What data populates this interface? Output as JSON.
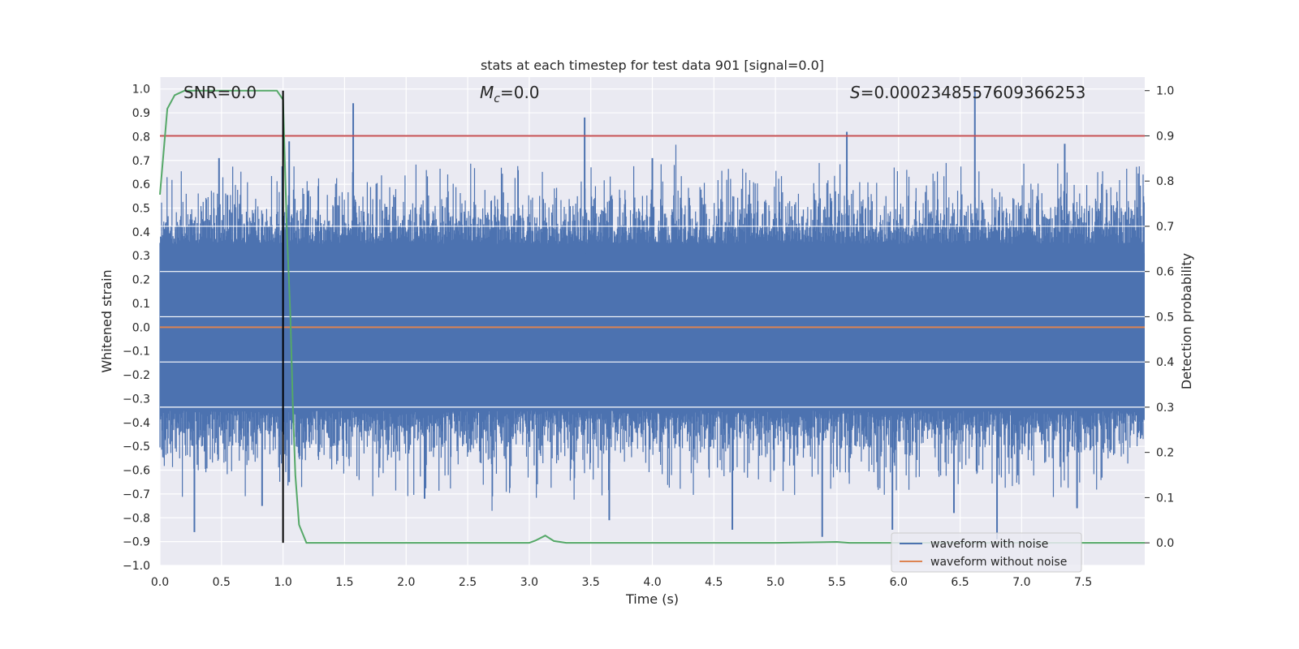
{
  "chart_data": {
    "type": "line",
    "title": "stats at each timestep for test data 901 [signal=0.0]",
    "xlabel": "Time (s)",
    "ylabel_left": "Whitened strain",
    "ylabel_right": "Detection probability",
    "xlim": [
      0.0,
      8.0
    ],
    "ylim_left": [
      -1.0,
      1.05
    ],
    "ylim_right": [
      -0.05,
      1.03
    ],
    "xticks": [
      "0.0",
      "0.5",
      "1.0",
      "1.5",
      "2.0",
      "2.5",
      "3.0",
      "3.5",
      "4.0",
      "4.5",
      "5.0",
      "5.5",
      "6.0",
      "6.5",
      "7.0",
      "7.5"
    ],
    "yticks_left": [
      "1.0",
      "0.9",
      "0.8",
      "0.7",
      "0.6",
      "0.5",
      "0.4",
      "0.3",
      "0.2",
      "0.1",
      "0.0",
      "-0.1",
      "-0.2",
      "-0.3",
      "-0.4",
      "-0.5",
      "-0.6",
      "-0.7",
      "-0.8",
      "-0.9",
      "-1.0"
    ],
    "yticks_right": [
      "1.0",
      "0.9",
      "0.8",
      "0.7",
      "0.6",
      "0.5",
      "0.4",
      "0.3",
      "0.2",
      "0.1",
      "0.0"
    ],
    "annotations": {
      "snr": "SNR=0.0",
      "mc_symbol": "M",
      "mc_sub": "c",
      "mc_value": "=0.0",
      "s_symbol": "S",
      "s_value": "=0.0002348557609366253"
    },
    "threshold": {
      "probability": 0.9,
      "color": "#c44e52"
    },
    "marker_time": 1.0,
    "legend": [
      {
        "label": "waveform with noise",
        "color": "#4c72b0"
      },
      {
        "label": "waveform without noise",
        "color": "#dd8452"
      }
    ],
    "noise_series": {
      "name": "waveform with noise",
      "color": "#4c72b0",
      "typical_band": [
        -0.35,
        0.35
      ],
      "peaks": [
        {
          "t": 1.57,
          "v": 0.94
        },
        {
          "t": 3.45,
          "v": 0.88
        },
        {
          "t": 5.58,
          "v": 0.82
        },
        {
          "t": 6.62,
          "v": 1.0
        },
        {
          "t": 1.05,
          "v": 0.78
        },
        {
          "t": 0.48,
          "v": 0.71
        },
        {
          "t": 7.35,
          "v": 0.77
        },
        {
          "t": 4.0,
          "v": 0.71
        },
        {
          "t": 5.38,
          "v": -0.88
        },
        {
          "t": 6.8,
          "v": -0.89
        },
        {
          "t": 0.28,
          "v": -0.86
        },
        {
          "t": 1.05,
          "v": -0.65
        },
        {
          "t": 2.15,
          "v": -0.72
        },
        {
          "t": 3.65,
          "v": -0.81
        },
        {
          "t": 4.65,
          "v": -0.85
        },
        {
          "t": 5.95,
          "v": -0.85
        },
        {
          "t": 6.45,
          "v": -0.78
        },
        {
          "t": 7.45,
          "v": -0.76
        },
        {
          "t": 0.83,
          "v": -0.75
        }
      ]
    },
    "clean_series": {
      "name": "waveform without noise",
      "color": "#dd8452",
      "value": 0.0
    },
    "probability_series": {
      "name": "detection probability",
      "color": "#55a868",
      "t": [
        0.0,
        0.06,
        0.12,
        0.2,
        0.5,
        0.8,
        0.95,
        1.0,
        1.03,
        1.06,
        1.08,
        1.1,
        1.13,
        1.19,
        1.25,
        2.0,
        3.0,
        3.05,
        3.13,
        3.2,
        3.3,
        4.0,
        5.0,
        5.5,
        5.6,
        6.0,
        7.0,
        8.0
      ],
      "p": [
        0.77,
        0.96,
        0.99,
        1.0,
        1.0,
        1.0,
        1.0,
        0.98,
        0.7,
        0.5,
        0.3,
        0.15,
        0.04,
        0.0,
        0.0,
        0.0,
        0.0,
        0.005,
        0.016,
        0.004,
        0.0,
        0.0,
        0.0,
        0.002,
        0.0,
        0.0,
        0.0,
        0.0
      ]
    },
    "background_color": "#eaeaf2",
    "grid": true
  }
}
